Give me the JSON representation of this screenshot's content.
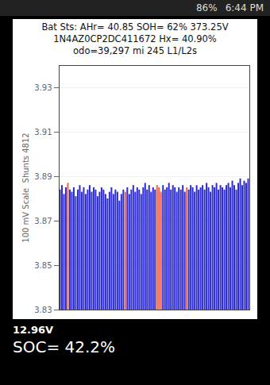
{
  "status_bar": {
    "battery": "86%",
    "time": "6:44 PM"
  },
  "chart_data": {
    "type": "bar",
    "title": "Bat Sts: AHr= 40.85 SOH= 62% 373.25V",
    "subtitle": "1N4AZ0CP2DC411672 Hx= 40.90%",
    "annotations": [
      "odo=39,297 mi 245 L1/L2s",
      "12.96V",
      "SOC= 42.2%"
    ],
    "y_label": "100 mV Scale  Shunts 4812",
    "categories": [
      null,
      null,
      null,
      null,
      null,
      null,
      null,
      null,
      null,
      null,
      null,
      null,
      null,
      null,
      null,
      null,
      null,
      null,
      null,
      null,
      null,
      null,
      null,
      null,
      null,
      null,
      null,
      null,
      null,
      null,
      null,
      null,
      null,
      null,
      null,
      null,
      null,
      null,
      null,
      null,
      null,
      null,
      null,
      null,
      null,
      null,
      null,
      null,
      null,
      null,
      null,
      null,
      null,
      null,
      null,
      null,
      null,
      null,
      null,
      null,
      null,
      null,
      null,
      null,
      null,
      null,
      null,
      null,
      null,
      null,
      null,
      null,
      null,
      null,
      null,
      null,
      null,
      null,
      null,
      null,
      null,
      null,
      null,
      null,
      null,
      null,
      null,
      null,
      null,
      null,
      null,
      null,
      null,
      null,
      null,
      null
    ],
    "values": [
      3.884,
      3.886,
      3.882,
      3.885,
      3.887,
      3.884,
      3.883,
      3.885,
      3.881,
      3.884,
      3.886,
      3.883,
      3.885,
      3.882,
      3.884,
      3.886,
      3.883,
      3.885,
      3.884,
      3.881,
      3.883,
      3.885,
      3.884,
      3.882,
      3.88,
      3.883,
      3.885,
      3.882,
      3.884,
      3.883,
      3.879,
      3.882,
      3.884,
      3.883,
      3.885,
      3.882,
      3.884,
      3.886,
      3.883,
      3.885,
      3.884,
      3.882,
      3.885,
      3.887,
      3.884,
      3.886,
      3.883,
      3.885,
      3.884,
      3.886,
      3.885,
      3.883,
      3.886,
      3.884,
      3.885,
      3.887,
      3.884,
      3.886,
      3.885,
      3.883,
      3.885,
      3.884,
      3.886,
      3.883,
      3.885,
      3.884,
      3.886,
      3.885,
      3.883,
      3.886,
      3.884,
      3.885,
      3.886,
      3.884,
      3.887,
      3.885,
      3.883,
      3.886,
      3.885,
      3.887,
      3.884,
      3.886,
      3.885,
      3.884,
      3.886,
      3.887,
      3.885,
      3.888,
      3.886,
      3.884,
      3.887,
      3.889,
      3.886,
      3.888,
      3.887,
      3.889
    ],
    "colors": [
      "#2a2ad8",
      "#2a2ad8",
      "#2a2ad8",
      "#2a2ad8",
      "#f0604a",
      "#2a2ad8",
      "#2a2ad8",
      "#2a2ad8",
      "#2a2ad8",
      "#2a2ad8",
      "#2a2ad8",
      "#2a2ad8",
      "#2a2ad8",
      "#2a2ad8",
      "#2a2ad8",
      "#2a2ad8",
      "#2a2ad8",
      "#2a2ad8",
      "#2a2ad8",
      "#2a2ad8",
      "#2a2ad8",
      "#2a2ad8",
      "#2a2ad8",
      "#2a2ad8",
      "#2a2ad8",
      "#2a2ad8",
      "#2a2ad8",
      "#2a2ad8",
      "#2a2ad8",
      "#2a2ad8",
      "#2a2ad8",
      "#2a2ad8",
      "#2a2ad8",
      "#f0604a",
      "#2a2ad8",
      "#2a2ad8",
      "#2a2ad8",
      "#2a2ad8",
      "#2a2ad8",
      "#2a2ad8",
      "#2a2ad8",
      "#2a2ad8",
      "#2a2ad8",
      "#2a2ad8",
      "#2a2ad8",
      "#2a2ad8",
      "#2a2ad8",
      "#2a2ad8",
      "#2a2ad8",
      "#f0604a",
      "#f0604a",
      "#f0604a",
      "#2a2ad8",
      "#2a2ad8",
      "#2a2ad8",
      "#2a2ad8",
      "#2a2ad8",
      "#2a2ad8",
      "#2a2ad8",
      "#2a2ad8",
      "#2a2ad8",
      "#2a2ad8",
      "#2a2ad8",
      "#2a2ad8",
      "#f0604a",
      "#2a2ad8",
      "#2a2ad8",
      "#2a2ad8",
      "#2a2ad8",
      "#2a2ad8",
      "#2a2ad8",
      "#2a2ad8",
      "#2a2ad8",
      "#2a2ad8",
      "#2a2ad8",
      "#2a2ad8",
      "#2a2ad8",
      "#2a2ad8",
      "#2a2ad8",
      "#2a2ad8",
      "#2a2ad8",
      "#2a2ad8",
      "#2a2ad8",
      "#2a2ad8",
      "#2a2ad8",
      "#2a2ad8",
      "#2a2ad8",
      "#2a2ad8",
      "#2a2ad8",
      "#2a2ad8",
      "#2a2ad8",
      "#2a2ad8",
      "#2a2ad8",
      "#2a2ad8",
      "#2a2ad8",
      "#2a2ad8"
    ],
    "ylim": [
      3.83,
      3.94
    ],
    "yticks": [
      3.83,
      3.85,
      3.87,
      3.89,
      3.91,
      3.93
    ],
    "grid": true,
    "tick_labels": "y"
  }
}
